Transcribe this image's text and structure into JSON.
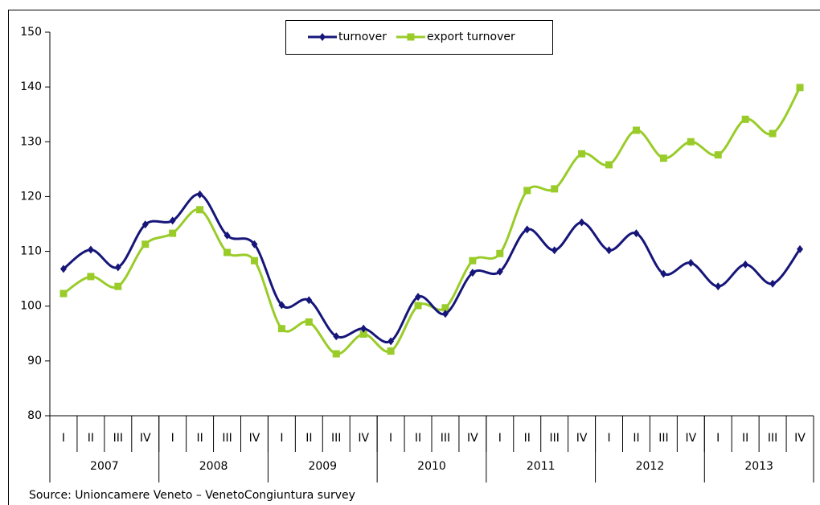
{
  "chart_data": {
    "type": "line",
    "categories": [
      "I",
      "II",
      "III",
      "IV",
      "I",
      "II",
      "III",
      "IV",
      "I",
      "II",
      "III",
      "IV",
      "I",
      "II",
      "III",
      "IV",
      "I",
      "II",
      "III",
      "IV",
      "I",
      "II",
      "III",
      "IV",
      "I",
      "II",
      "III",
      "IV"
    ],
    "years": [
      "2007",
      "2008",
      "2009",
      "2010",
      "2011",
      "2012",
      "2013"
    ],
    "series": [
      {
        "name": "turnover",
        "color": "#16167a",
        "marker": "diamond",
        "values": [
          106.8,
          110.3,
          107.1,
          114.9,
          115.6,
          120.4,
          112.9,
          111.3,
          100.2,
          101.1,
          94.5,
          95.9,
          93.6,
          101.7,
          98.6,
          106.1,
          106.3,
          114.0,
          110.2,
          115.3,
          110.2,
          113.3,
          105.9,
          107.9,
          103.6,
          107.6,
          104.1,
          110.4
        ]
      },
      {
        "name": "export turnover",
        "color": "#99cc29",
        "marker": "square",
        "values": [
          102.3,
          105.4,
          103.6,
          111.3,
          113.3,
          117.6,
          109.8,
          108.3,
          95.9,
          97.1,
          91.3,
          94.9,
          91.8,
          100.1,
          99.7,
          108.3,
          109.6,
          121.1,
          121.4,
          127.8,
          125.8,
          132.1,
          127.0,
          130.0,
          127.6,
          134.1,
          131.5,
          139.9
        ]
      }
    ],
    "ylim": [
      80,
      150
    ],
    "yticks": [
      80,
      90,
      100,
      110,
      120,
      130,
      140,
      150
    ],
    "grid": false,
    "legend": "top",
    "source": "Source: Unioncamere Veneto – VenetoCongiuntura survey"
  }
}
